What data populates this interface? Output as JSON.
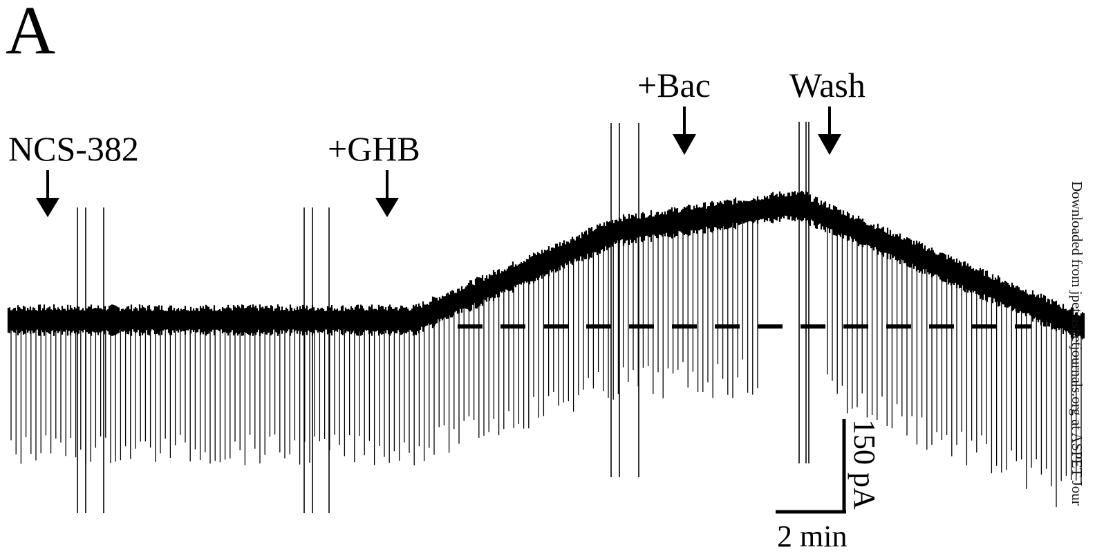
{
  "figure": {
    "panel_letter": "A",
    "labels": {
      "ncs": "NCS-382",
      "ghb": "+GHB",
      "bac": "+Bac",
      "wash": "Wash"
    },
    "scale_bar": {
      "current": "150 pA",
      "time": "2 min"
    },
    "watermark": "Downloaded from jpet.aspetjournals.org at ASPET Jour"
  },
  "colors": {
    "trace": "#000000",
    "background": "#ffffff"
  }
}
